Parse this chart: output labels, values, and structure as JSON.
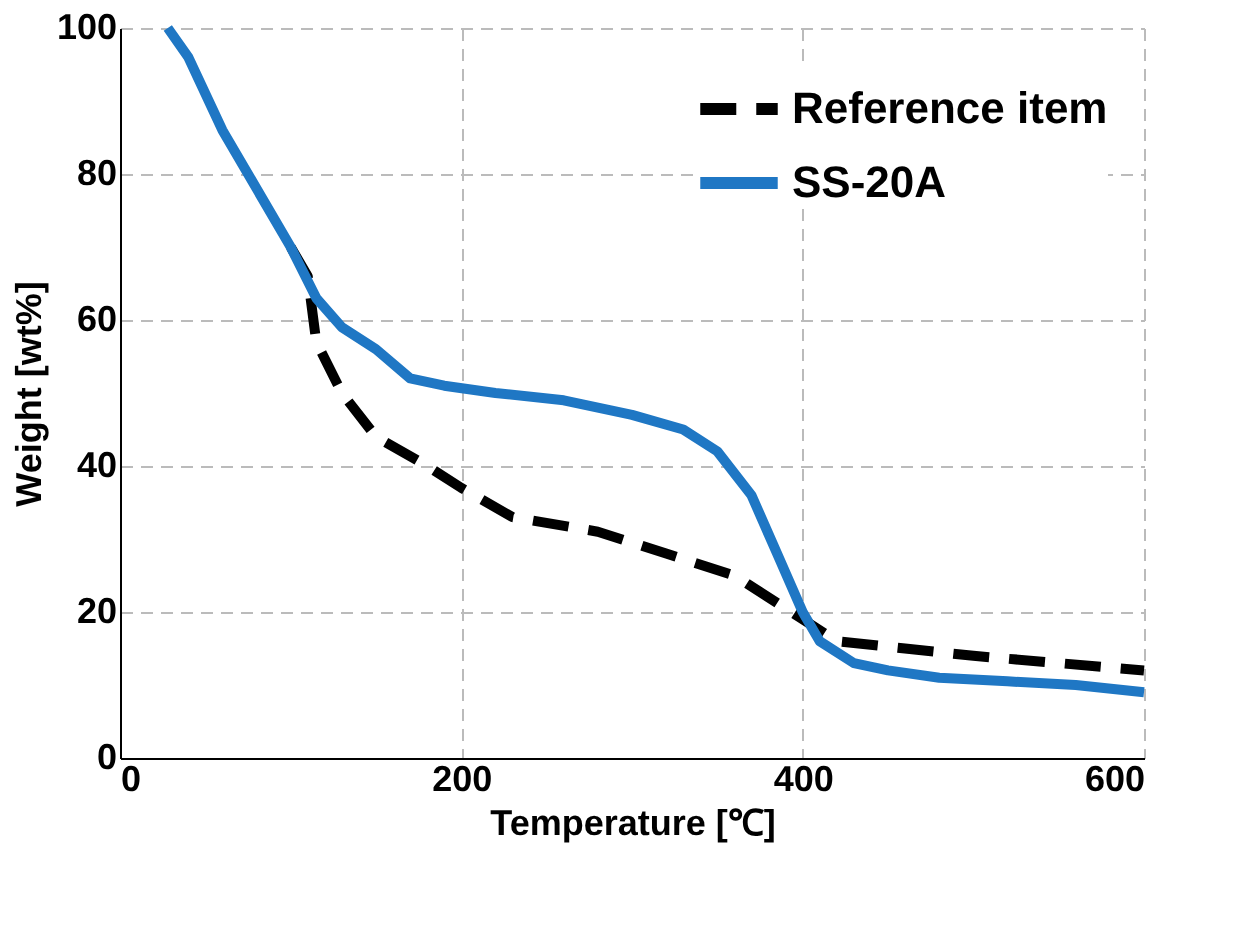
{
  "chart_data": {
    "type": "line",
    "xlabel": "Temperature [℃]",
    "ylabel": "Weight [wt%]",
    "xlim": [
      0,
      600
    ],
    "xticks": [
      0,
      200,
      400,
      600
    ],
    "ylim": [
      0,
      100
    ],
    "yticks": [
      0,
      20,
      40,
      60,
      80,
      100
    ],
    "grid": true,
    "legend": "top right",
    "series": [
      {
        "name": "Reference item",
        "color": "#000000",
        "line_style": "dashed",
        "x": [
          100,
          110,
          115,
          130,
          150,
          180,
          200,
          230,
          280,
          320,
          360,
          400,
          420,
          460,
          500,
          550,
          600
        ],
        "values": [
          70,
          66,
          57,
          50,
          44,
          40,
          37,
          33,
          31,
          28,
          25,
          19,
          16,
          15,
          14,
          13,
          12
        ]
      },
      {
        "name": "SS-20A",
        "color": "#1f77c4",
        "line_style": "solid",
        "x": [
          28,
          40,
          60,
          80,
          100,
          115,
          130,
          150,
          170,
          190,
          220,
          260,
          300,
          330,
          350,
          370,
          385,
          400,
          410,
          430,
          450,
          480,
          520,
          560,
          600
        ],
        "values": [
          100,
          96,
          86,
          78,
          70,
          63,
          59,
          56,
          52,
          51,
          50,
          49,
          47,
          45,
          42,
          36,
          28,
          20,
          16,
          13,
          12,
          11,
          10.5,
          10,
          9
        ]
      }
    ]
  }
}
